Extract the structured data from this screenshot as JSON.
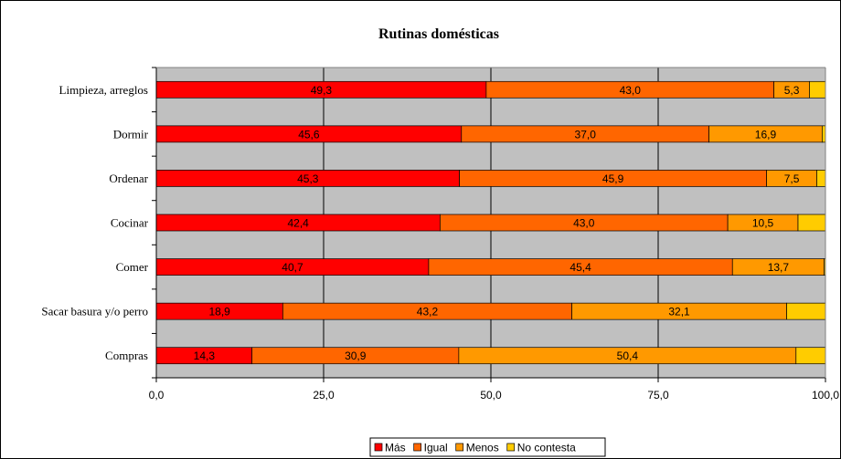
{
  "chart_data": {
    "type": "bar",
    "orientation": "horizontal",
    "stacked": true,
    "title": "Rutinas domésticas",
    "categories": [
      "Limpieza, arreglos",
      "Dormir",
      "Ordenar",
      "Cocinar",
      "Comer",
      "Sacar basura y/o perro",
      "Compras"
    ],
    "series": [
      {
        "name": "Más",
        "color": "#ff0000",
        "values": [
          49.3,
          45.6,
          45.3,
          42.4,
          40.7,
          18.9,
          14.3
        ],
        "labels": [
          "49,3",
          "45,6",
          "45,3",
          "42,4",
          "40,7",
          "18,9",
          "14,3"
        ]
      },
      {
        "name": "Igual",
        "color": "#ff6600",
        "values": [
          43.0,
          37.0,
          45.9,
          43.0,
          45.4,
          43.2,
          30.9
        ],
        "labels": [
          "43,0",
          "37,0",
          "45,9",
          "43,0",
          "45,4",
          "43,2",
          "30,9"
        ]
      },
      {
        "name": "Menos",
        "color": "#ff9900",
        "values": [
          5.3,
          16.9,
          7.5,
          10.5,
          13.7,
          32.1,
          50.4
        ],
        "labels": [
          "5,3",
          "16,9",
          "7,5",
          "10,5",
          "13,7",
          "32,1",
          "50,4"
        ]
      },
      {
        "name": "No contesta",
        "color": "#ffcc00",
        "values": [
          2.4,
          0.5,
          1.3,
          4.1,
          0.2,
          5.8,
          4.4
        ],
        "labels": [
          "",
          "",
          "",
          "",
          "",
          "",
          ""
        ]
      }
    ],
    "xlim": [
      0,
      100
    ],
    "xticks": [
      0,
      25,
      50,
      75,
      100
    ],
    "xtick_labels": [
      "0,0",
      "25,0",
      "50,0",
      "75,0",
      "100,0"
    ],
    "plot_background": "#c0c0c0",
    "grid": true,
    "legend_position": "bottom"
  }
}
